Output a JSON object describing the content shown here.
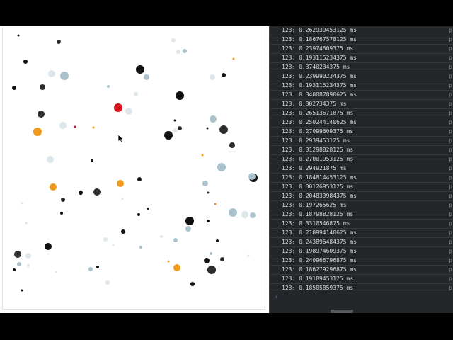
{
  "canvas": {
    "background": "#ffffff",
    "cursor_icon": "mouse-pointer-icon",
    "particle_colors": {
      "dark": "#111111",
      "gray": "#2d2d2d",
      "blue": "#a9c2cd",
      "pale": "#dde7eb",
      "orange": "#ef9a1a",
      "red": "#d4111a"
    }
  },
  "console": {
    "background": "#242629",
    "text_color": "#d5d7da",
    "prompt": "›",
    "source_marker": "p",
    "lines": [
      "123: 0.262939453125 ms",
      "123: 0.186767578125 ms",
      "123: 0.23974609375 ms",
      "123: 0.193115234375 ms",
      "123: 0.3740234375 ms",
      "123: 0.239990234375 ms",
      "123: 0.193115234375 ms",
      "123: 0.340087890625 ms",
      "123: 0.302734375 ms",
      "123: 0.26513671875 ms",
      "123: 0.250244140625 ms",
      "123: 0.27099609375 ms",
      "123: 0.2939453125 ms",
      "123: 0.31298828125 ms",
      "123: 0.27001953125 ms",
      "123: 0.294921875 ms",
      "123: 0.184814453125 ms",
      "123: 0.30126953125 ms",
      "123: 0.204833984375 ms",
      "123: 0.197265625 ms",
      "123: 0.18798828125 ms",
      "123: 0.3310546875 ms",
      "123: 0.218994140625 ms",
      "123: 0.243896484375 ms",
      "123: 0.198974609375 ms",
      "123: 0.240966796875 ms",
      "123: 0.186279296875 ms",
      "123: 0.19189453125 ms",
      "123: 0.18505859375 ms"
    ]
  }
}
